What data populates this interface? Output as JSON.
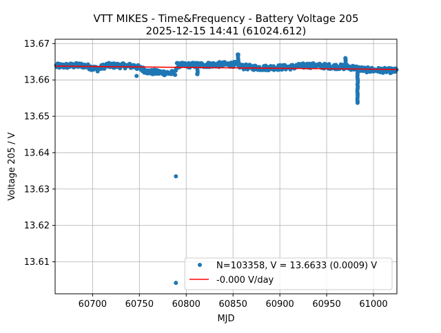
{
  "chart_data": {
    "type": "scatter",
    "title_line1": "VTT MIKES - Time&Frequency - Battery Voltage 205",
    "title_line2": "2025-12-15 14:41 (61024.612)",
    "xlabel": "MJD",
    "ylabel": "Voltage 205 / V",
    "xlim": [
      60660,
      61025
    ],
    "ylim": [
      13.6012,
      13.6712
    ],
    "x_ticks": [
      60700,
      60750,
      60800,
      60850,
      60900,
      60950,
      61000
    ],
    "y_ticks": [
      13.61,
      13.62,
      13.63,
      13.64,
      13.65,
      13.66,
      13.67
    ],
    "grid": true,
    "legend_position": "lower-right",
    "series": [
      {
        "name": "N=103358, V = 13.6633 (0.0009) V",
        "marker": "circle",
        "color": "#1f77b4",
        "band": [
          [
            60660,
            13.6638
          ],
          [
            60690,
            13.664
          ],
          [
            60705,
            13.663
          ],
          [
            60715,
            13.664
          ],
          [
            60745,
            13.6638
          ],
          [
            60760,
            13.6622
          ],
          [
            60788,
            13.6618
          ],
          [
            60790,
            13.664
          ],
          [
            60830,
            13.6642
          ],
          [
            60854,
            13.6643
          ],
          [
            60860,
            13.6636
          ],
          [
            60880,
            13.6633
          ],
          [
            60910,
            13.6635
          ],
          [
            60930,
            13.664
          ],
          [
            60975,
            13.6635
          ],
          [
            60990,
            13.6628
          ],
          [
            61025,
            13.6625
          ]
        ],
        "outliers": [
          [
            60789,
            13.6335
          ],
          [
            60789,
            13.6042
          ],
          [
            60747,
            13.6611
          ],
          [
            60812,
            13.6616
          ],
          [
            60855,
            13.667
          ],
          [
            60970,
            13.666
          ],
          [
            60983,
            13.654
          ],
          [
            60993,
            13.6622
          ]
        ]
      },
      {
        "name": "-0.000 V/day",
        "line": "solid",
        "color": "#ff0000",
        "points": [
          [
            60660,
            13.6638
          ],
          [
            61025,
            13.6629
          ]
        ]
      }
    ]
  }
}
